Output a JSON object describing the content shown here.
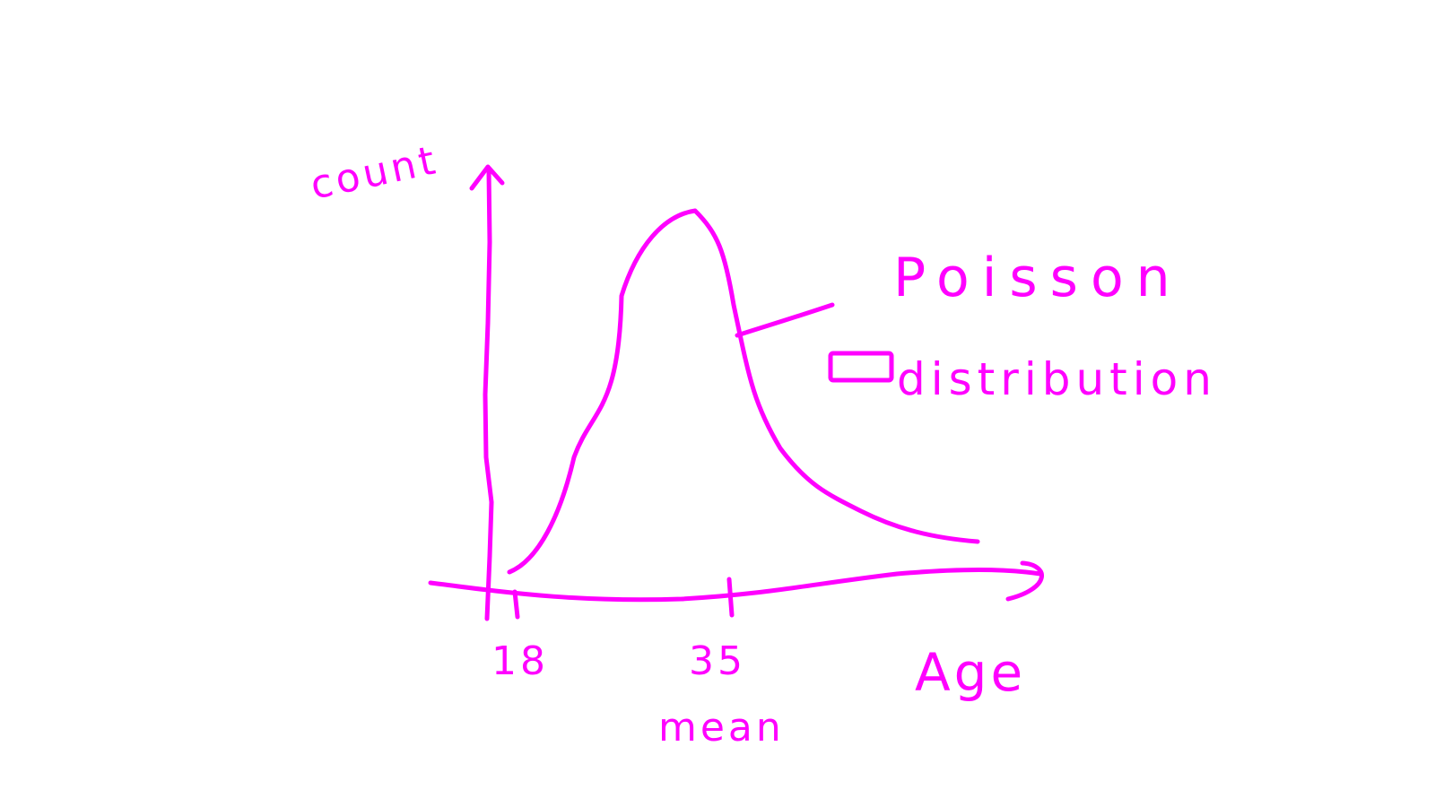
{
  "colors": {
    "ink": "#ff00ff",
    "background": "#ffffff"
  },
  "axes": {
    "y_label": "count",
    "x_label": "Age"
  },
  "ticks": [
    {
      "label": "18",
      "sublabel": ""
    },
    {
      "label": "35",
      "sublabel": "mean"
    }
  ],
  "annotation": {
    "line1": "Poisson",
    "line2": "distribution"
  }
}
